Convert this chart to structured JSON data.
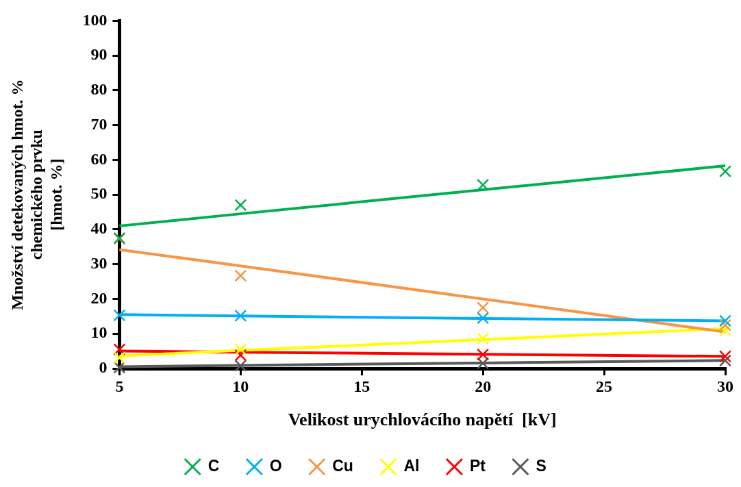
{
  "chart_data": {
    "type": "scatter",
    "xlabel": "Velikost urychlovácího napětí  [kV]",
    "ylabel": "Množství detekovaných hmot. %\nchemického prvku\n[hmot. %]",
    "x": [
      5,
      10,
      20,
      30
    ],
    "xlim": [
      5,
      30
    ],
    "xticks": [
      5,
      10,
      15,
      20,
      25,
      30
    ],
    "ylim": [
      0,
      100
    ],
    "yticks": [
      0,
      10,
      20,
      30,
      40,
      50,
      60,
      70,
      80,
      90,
      100
    ],
    "grid": false,
    "legend": "bottom",
    "marker": "cross",
    "series": [
      {
        "name": "C",
        "color": "#00b050",
        "values": [
          37.5,
          47,
          52.8,
          56.7
        ]
      },
      {
        "name": "O",
        "color": "#00b0f0",
        "values": [
          15.3,
          15.2,
          14.5,
          13.7
        ]
      },
      {
        "name": "Cu",
        "color": "#f79646",
        "values": [
          37.3,
          26.7,
          17.5,
          12.5
        ]
      },
      {
        "name": "Al",
        "color": "#ffff00",
        "values": [
          3.1,
          5.5,
          8.6,
          11
        ]
      },
      {
        "name": "Pt",
        "color": "#ff0000",
        "values": [
          5.5,
          3.8,
          4,
          3.5
        ]
      },
      {
        "name": "S",
        "color": "#595959",
        "values": [
          0.3,
          0.8,
          1.5,
          2.3
        ]
      },
      {
        "type": "line",
        "marker": "none",
        "color": "#00b050",
        "values": [
          41,
          44.5,
          51.4,
          58.3
        ]
      },
      {
        "type": "line",
        "marker": "none",
        "color": "#00b0f0",
        "values": [
          15.5,
          15.1,
          14.4,
          13.7
        ]
      },
      {
        "type": "line",
        "marker": "none",
        "color": "#f79646",
        "values": [
          34.2,
          29.5,
          20,
          10.5
        ]
      },
      {
        "type": "line",
        "marker": "none",
        "color": "#ffff00",
        "values": [
          3.6,
          5.2,
          8.3,
          11.5
        ]
      },
      {
        "type": "line",
        "marker": "none",
        "color": "#ff0000",
        "values": [
          5,
          4.7,
          4.1,
          3.5
        ]
      },
      {
        "type": "line",
        "marker": "none",
        "color": "#595959",
        "values": [
          0.5,
          0.9,
          1.6,
          2.3
        ]
      }
    ]
  }
}
